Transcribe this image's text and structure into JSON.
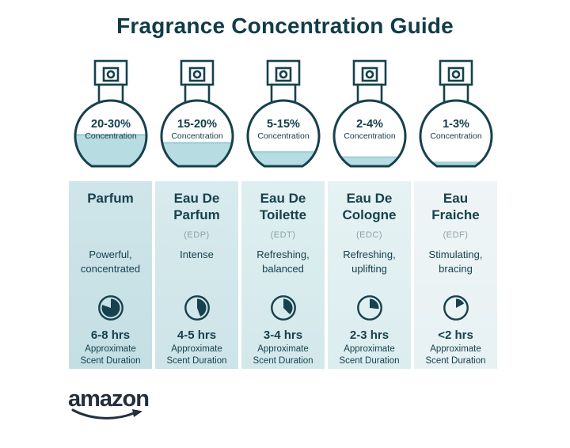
{
  "title": "Fragrance Concentration Guide",
  "concentration_word": "Concentration",
  "duration_note": "Approximate\nScent Duration",
  "brand": {
    "logo_text": "amazon"
  },
  "colors": {
    "dark_teal": "#16414d",
    "title_teal": "#113c49",
    "liquid": "#b7dce2",
    "abbr_gray": "#8da2a6",
    "logo_navy": "#232f3e"
  },
  "columns": [
    {
      "concentration": "20-30%",
      "fill_percent": 49,
      "name": "Parfum",
      "abbr": "",
      "description": "Powerful,\nconcentrated",
      "duration": "6-8 hrs",
      "clock_degrees": 290,
      "bg_top": "#cfe5e9",
      "bg_bottom": "#c4dfe4"
    },
    {
      "concentration": "15-20%",
      "fill_percent": 37,
      "name": "Eau De\nParfum",
      "abbr": "(EDP)",
      "description": "Intense",
      "duration": "4-5 hrs",
      "clock_degrees": 160,
      "bg_top": "#d8ebee",
      "bg_bottom": "#cde4e8"
    },
    {
      "concentration": "5-15%",
      "fill_percent": 23,
      "name": "Eau De\nToilette",
      "abbr": "(EDT)",
      "description": "Refreshing,\nbalanced",
      "duration": "3-4 hrs",
      "clock_degrees": 135,
      "bg_top": "#deeff1",
      "bg_bottom": "#d3e8eb"
    },
    {
      "concentration": "2-4%",
      "fill_percent": 15,
      "name": "Eau De\nCologne",
      "abbr": "(EDC)",
      "description": "Refreshing,\nuplifting",
      "duration": "2-3 hrs",
      "clock_degrees": 97,
      "bg_top": "#e6f2f3",
      "bg_bottom": "#dcedef"
    },
    {
      "concentration": "1-3%",
      "fill_percent": 7,
      "name": "Eau\nFraiche",
      "abbr": "(EDF)",
      "description": "Stimulating,\nbracing",
      "duration": "<2 hrs",
      "clock_degrees": 62,
      "bg_top": "#eff5f6",
      "bg_bottom": "#e7f1f3"
    }
  ]
}
